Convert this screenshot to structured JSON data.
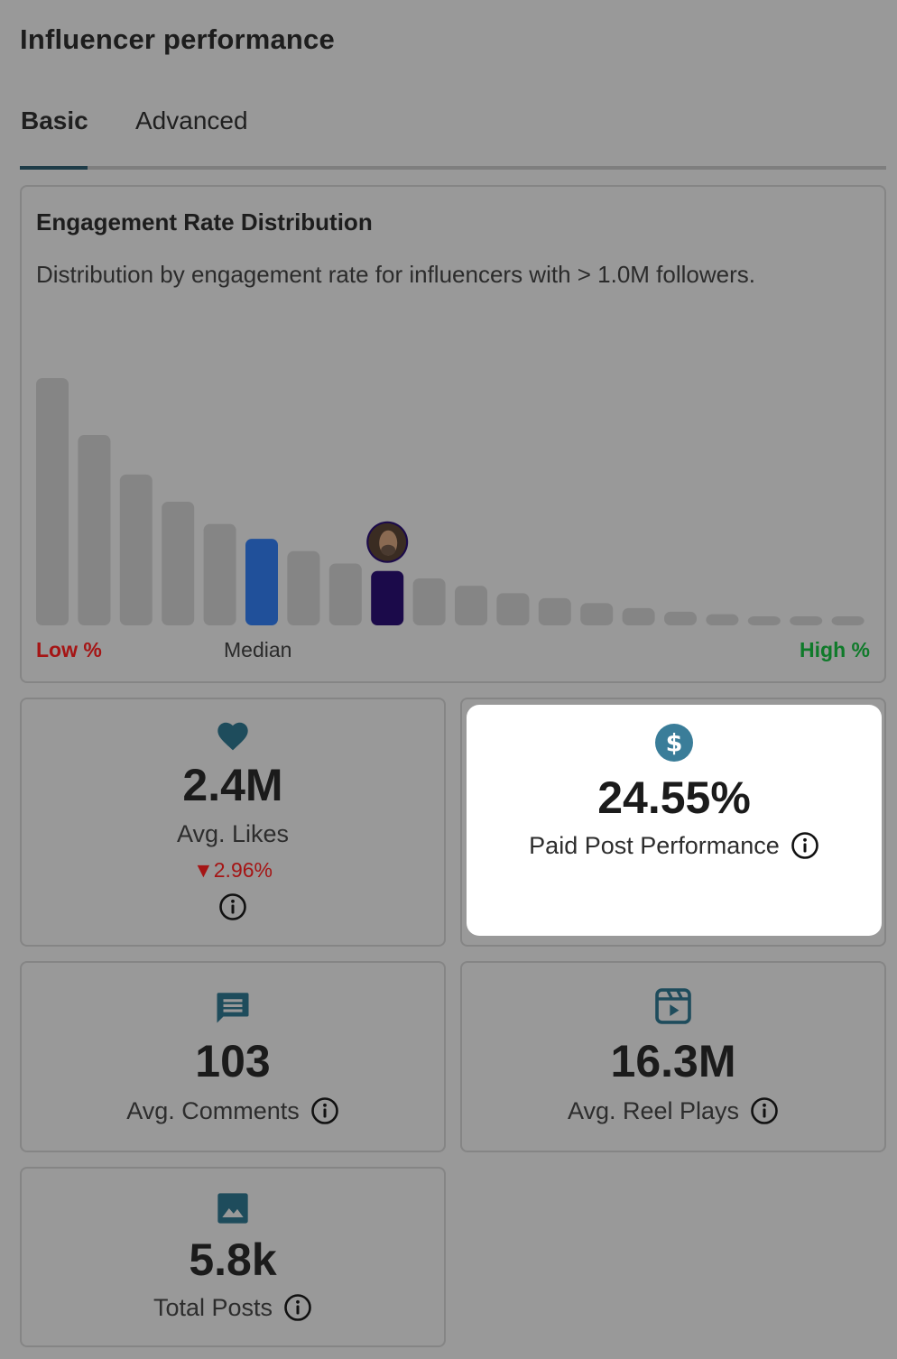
{
  "header": {
    "title": "Influencer performance"
  },
  "tabs": [
    {
      "label": "Basic",
      "active": true
    },
    {
      "label": "Advanced",
      "active": false
    }
  ],
  "engagement_chart": {
    "title": "Engagement Rate Distribution",
    "subtitle": "Distribution by engagement rate for influencers with > 1.0M followers.",
    "low_label": "Low %",
    "median_label": "Median",
    "high_label": "High %",
    "colors": {
      "default": "#858585",
      "median": "#20509a",
      "influencer": "#1b0a4a",
      "low": "#a51515",
      "high": "#0f7a2a"
    }
  },
  "chart_data": {
    "type": "bar",
    "values": [
      100,
      77,
      61,
      50,
      41,
      35,
      30,
      25,
      22,
      19,
      16,
      13,
      11,
      9,
      7,
      5.5,
      4.5,
      3.5,
      3,
      2.5
    ],
    "median_index": 5,
    "influencer_index": 8,
    "xlabel_left": "Low %",
    "xlabel_median": "Median",
    "xlabel_right": "High %"
  },
  "metrics": {
    "likes": {
      "icon": "heart-icon",
      "value": "2.4M",
      "label": "Avg. Likes",
      "change": "▼2.96%"
    },
    "paid": {
      "icon": "dollar-icon",
      "value": "24.55%",
      "label": "Paid Post Performance"
    },
    "comments": {
      "icon": "comment-icon",
      "value": "103",
      "label": "Avg. Comments"
    },
    "reels": {
      "icon": "reel-icon",
      "value": "16.3M",
      "label": "Avg. Reel Plays"
    },
    "posts": {
      "icon": "image-icon",
      "value": "5.8k",
      "label": "Total Posts"
    }
  },
  "icon_color": "#1e4c5c",
  "accent_color": "#3a7d99"
}
